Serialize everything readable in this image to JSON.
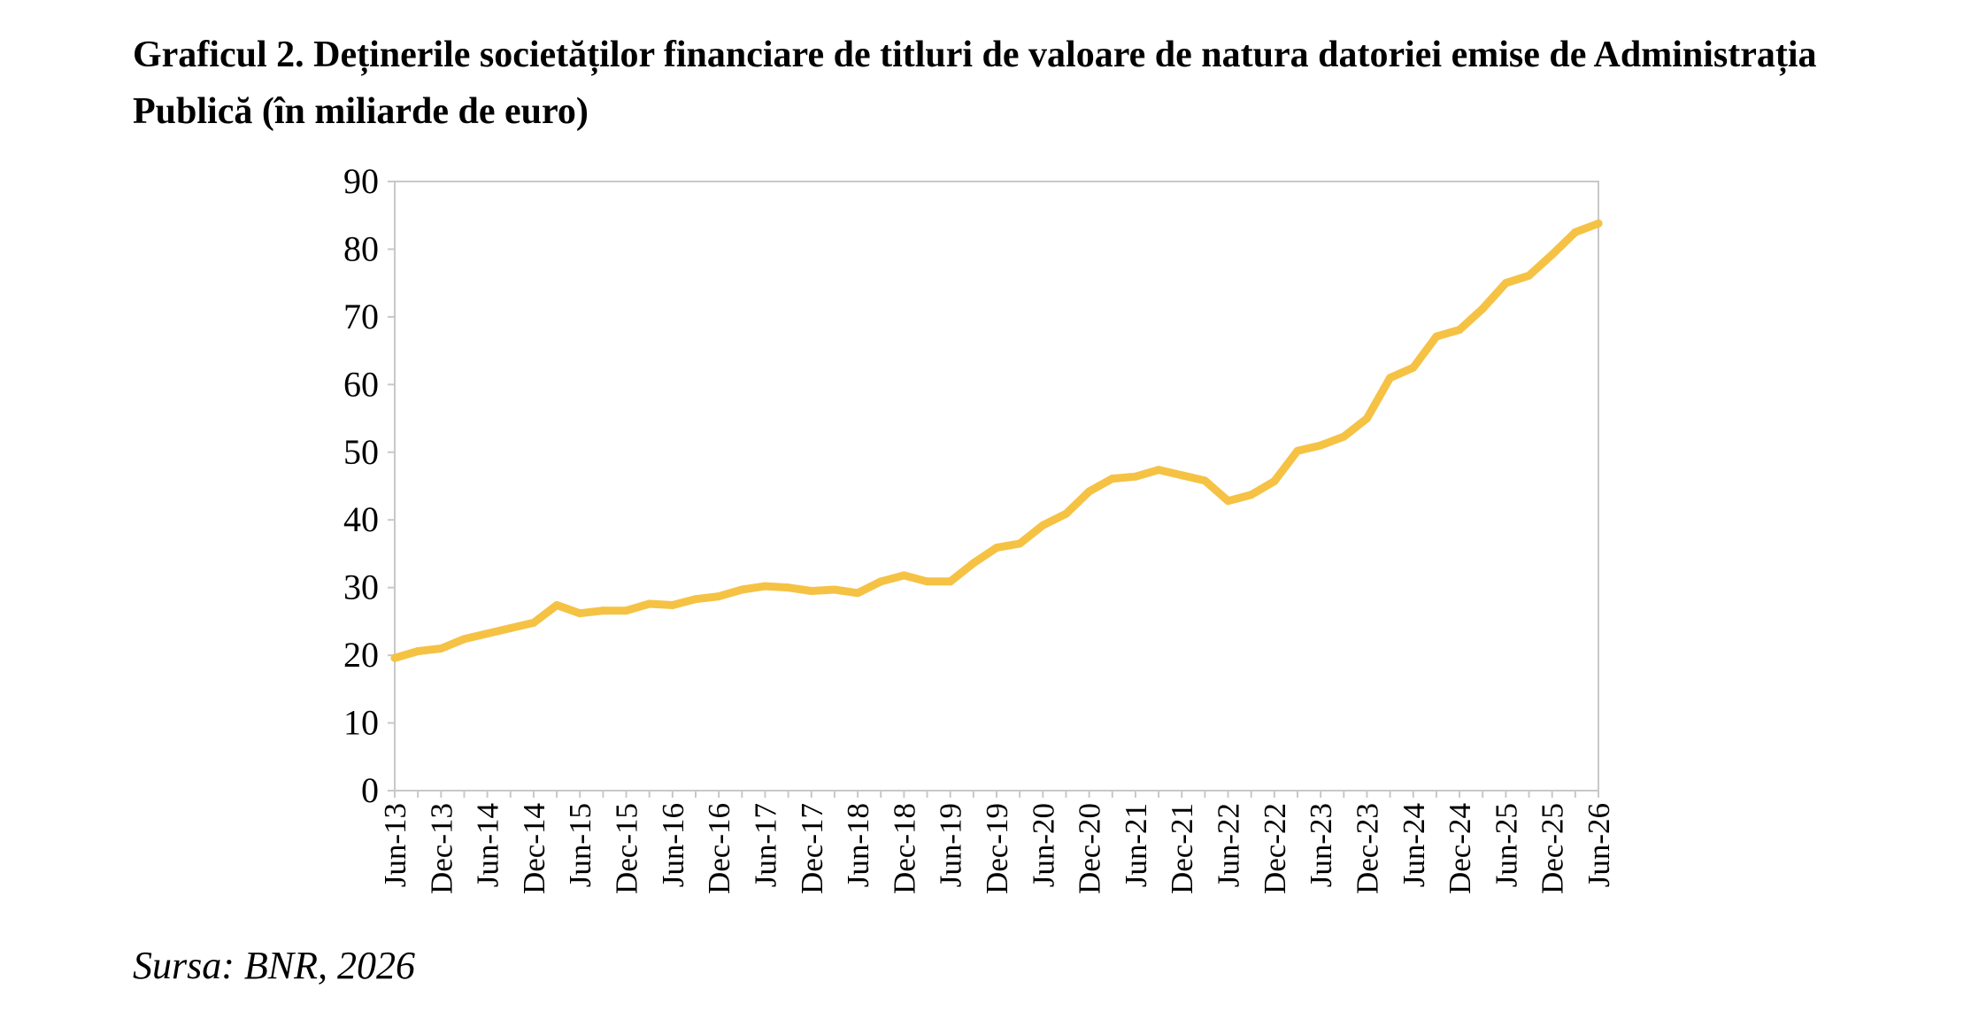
{
  "chart_data": {
    "type": "line",
    "title": "Graficul 2. Deținerile societăților financiare de titluri de valoare de natura datoriei emise de Administrația Publică (în miliarde de euro)",
    "xlabel": "",
    "ylabel": "",
    "ylim": [
      0,
      90
    ],
    "yticks": [
      "0",
      "10",
      "20",
      "30",
      "40",
      "50",
      "60",
      "70",
      "80",
      "90"
    ],
    "grid": false,
    "legend": "none",
    "color": "#F5C244",
    "x_tick_labels": [
      "Jun-13",
      "Dec-13",
      "Jun-14",
      "Dec-14",
      "Jun-15",
      "Dec-15",
      "Jun-16",
      "Dec-16",
      "Jun-17",
      "Dec-17",
      "Jun-18",
      "Dec-18",
      "Jun-19",
      "Dec-19",
      "Jun-20",
      "Dec-20",
      "Jun-21",
      "Dec-21",
      "Jun-22",
      "Dec-22",
      "Jun-23",
      "Dec-23",
      "Jun-24",
      "Dec-24",
      "Jun-25",
      "Dec-25",
      "Jun-26"
    ],
    "x": [
      "Jun-13",
      "Sep-13",
      "Dec-13",
      "Mar-14",
      "Jun-14",
      "Sep-14",
      "Dec-14",
      "Mar-15",
      "Jun-15",
      "Sep-15",
      "Dec-15",
      "Mar-16",
      "Jun-16",
      "Sep-16",
      "Dec-16",
      "Mar-17",
      "Jun-17",
      "Sep-17",
      "Dec-17",
      "Mar-18",
      "Jun-18",
      "Sep-18",
      "Dec-18",
      "Mar-19",
      "Jun-19",
      "Sep-19",
      "Dec-19",
      "Mar-20",
      "Jun-20",
      "Sep-20",
      "Dec-20",
      "Mar-21",
      "Jun-21",
      "Sep-21",
      "Dec-21",
      "Mar-22",
      "Jun-22",
      "Sep-22",
      "Dec-22",
      "Mar-23",
      "Jun-23",
      "Sep-23",
      "Dec-23",
      "Mar-24",
      "Jun-24",
      "Sep-24",
      "Dec-24",
      "Mar-25",
      "Jun-25",
      "Sep-25",
      "Dec-25",
      "Mar-26",
      "Jun-26"
    ],
    "series": [
      {
        "values": [
          19.6,
          20.6,
          21.0,
          22.4,
          23.2,
          24.0,
          24.8,
          27.4,
          26.2,
          26.6,
          26.6,
          27.6,
          27.4,
          28.3,
          28.7,
          29.7,
          30.2,
          30.0,
          29.5,
          29.7,
          29.2,
          30.9,
          31.8,
          30.9,
          30.9,
          33.6,
          35.9,
          36.5,
          39.2,
          40.9,
          44.2,
          46.1,
          46.4,
          47.4,
          46.6,
          45.8,
          42.8,
          43.7,
          45.7,
          50.2,
          51.0,
          52.3,
          55.0,
          61.0,
          62.5,
          67.1,
          68.1,
          71.2,
          75.0,
          76.1,
          79.2,
          82.5,
          83.8
        ]
      }
    ]
  },
  "source": "Sursa: BNR, 2026"
}
